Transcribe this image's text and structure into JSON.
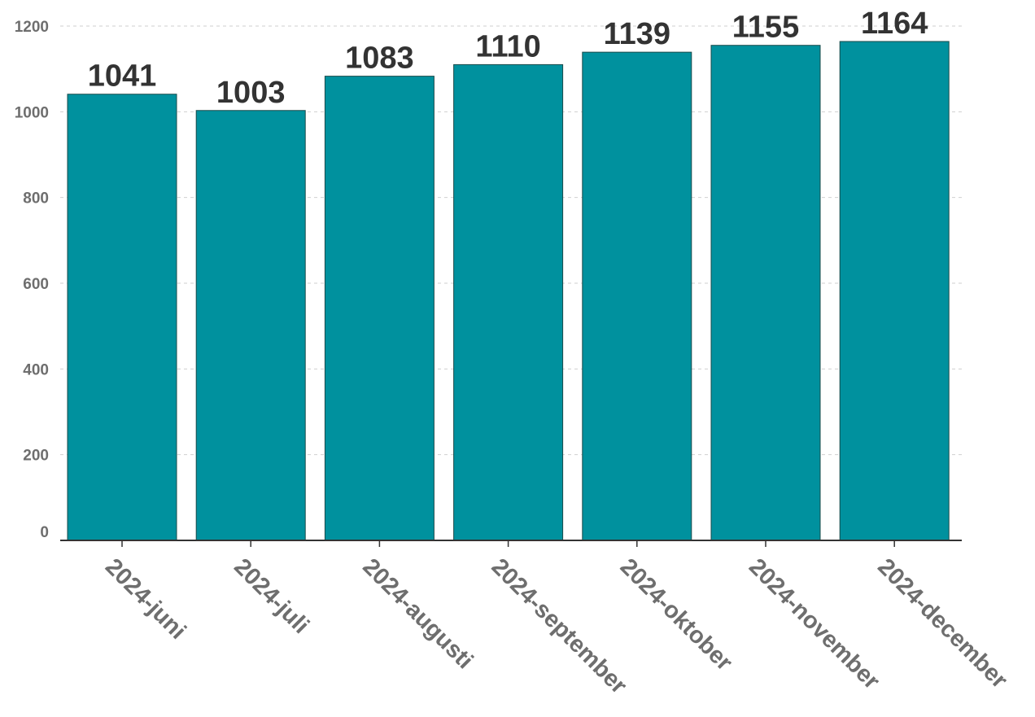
{
  "chart_data": {
    "type": "bar",
    "categories": [
      "2024-juni",
      "2024-juli",
      "2024-augusti",
      "2024-september",
      "2024-oktober",
      "2024-november",
      "2024-december"
    ],
    "values": [
      1041,
      1003,
      1083,
      1110,
      1139,
      1155,
      1164
    ],
    "yticks": [
      0,
      200,
      400,
      600,
      800,
      1000,
      1200
    ],
    "ylim": [
      0,
      1200
    ],
    "grid": true,
    "data_labels": true,
    "bar_color": "#00919e",
    "title": "",
    "xlabel": "",
    "ylabel": ""
  }
}
